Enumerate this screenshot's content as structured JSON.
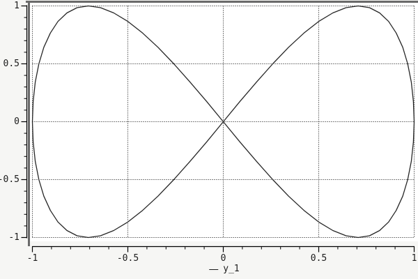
{
  "figure": {
    "background": "#f6f6f4",
    "plot_background": "#ffffff",
    "frame_color": "#6a6a6a",
    "axis_color": "#000000",
    "grid_color": "#000000",
    "curve_color": "#262626"
  },
  "axes": {
    "x": {
      "min": -1,
      "max": 1,
      "major_ticks": [
        -1,
        -0.5,
        0,
        0.5,
        1
      ],
      "tick_labels": [
        "-1",
        "-0.5",
        "0",
        "0.5",
        "1"
      ],
      "minor_step": 0.1
    },
    "y": {
      "min": -1,
      "max": 1,
      "major_ticks": [
        -1,
        -0.5,
        0,
        0.5,
        1
      ],
      "tick_labels": [
        "-1",
        "-0.5",
        "0",
        "0.5",
        "1"
      ],
      "minor_step": 0.1
    }
  },
  "legend": {
    "label": "y_1"
  },
  "chart_data": {
    "type": "line",
    "title": "",
    "xlabel": "",
    "ylabel": "",
    "xlim": [
      -1,
      1
    ],
    "ylim": [
      -1,
      1
    ],
    "grid": "dotted",
    "legend_position": "below-axis-center",
    "parametric": "x=sin(t), y=sin(2t), t in [0, 2*pi]",
    "series": [
      {
        "name": "y_1",
        "points": [
          [
            0.0,
            0.0
          ],
          [
            0.087,
            0.174
          ],
          [
            0.174,
            0.342
          ],
          [
            0.259,
            0.5
          ],
          [
            0.342,
            0.643
          ],
          [
            0.423,
            0.766
          ],
          [
            0.5,
            0.866
          ],
          [
            0.574,
            0.94
          ],
          [
            0.643,
            0.985
          ],
          [
            0.707,
            1.0
          ],
          [
            0.766,
            0.985
          ],
          [
            0.819,
            0.94
          ],
          [
            0.866,
            0.866
          ],
          [
            0.906,
            0.766
          ],
          [
            0.94,
            0.643
          ],
          [
            0.966,
            0.5
          ],
          [
            0.985,
            0.342
          ],
          [
            0.996,
            0.174
          ],
          [
            1.0,
            0.0
          ],
          [
            0.996,
            -0.174
          ],
          [
            0.985,
            -0.342
          ],
          [
            0.966,
            -0.5
          ],
          [
            0.94,
            -0.643
          ],
          [
            0.906,
            -0.766
          ],
          [
            0.866,
            -0.866
          ],
          [
            0.819,
            -0.94
          ],
          [
            0.766,
            -0.985
          ],
          [
            0.707,
            -1.0
          ],
          [
            0.643,
            -0.985
          ],
          [
            0.574,
            -0.94
          ],
          [
            0.5,
            -0.866
          ],
          [
            0.423,
            -0.766
          ],
          [
            0.342,
            -0.643
          ],
          [
            0.259,
            -0.5
          ],
          [
            0.174,
            -0.342
          ],
          [
            0.087,
            -0.174
          ],
          [
            0.0,
            0.0
          ],
          [
            -0.087,
            0.174
          ],
          [
            -0.174,
            0.342
          ],
          [
            -0.259,
            0.5
          ],
          [
            -0.342,
            0.643
          ],
          [
            -0.423,
            0.766
          ],
          [
            -0.5,
            0.866
          ],
          [
            -0.574,
            0.94
          ],
          [
            -0.643,
            0.985
          ],
          [
            -0.707,
            1.0
          ],
          [
            -0.766,
            0.985
          ],
          [
            -0.819,
            0.94
          ],
          [
            -0.866,
            0.866
          ],
          [
            -0.906,
            0.766
          ],
          [
            -0.94,
            0.643
          ],
          [
            -0.966,
            0.5
          ],
          [
            -0.985,
            0.342
          ],
          [
            -0.996,
            0.174
          ],
          [
            -1.0,
            0.0
          ],
          [
            -0.996,
            -0.174
          ],
          [
            -0.985,
            -0.342
          ],
          [
            -0.966,
            -0.5
          ],
          [
            -0.94,
            -0.643
          ],
          [
            -0.906,
            -0.766
          ],
          [
            -0.866,
            -0.866
          ],
          [
            -0.819,
            -0.94
          ],
          [
            -0.766,
            -0.985
          ],
          [
            -0.707,
            -1.0
          ],
          [
            -0.643,
            -0.985
          ],
          [
            -0.574,
            -0.94
          ],
          [
            -0.5,
            -0.866
          ],
          [
            -0.423,
            -0.766
          ],
          [
            -0.342,
            -0.643
          ],
          [
            -0.259,
            -0.5
          ],
          [
            -0.174,
            -0.342
          ],
          [
            -0.087,
            -0.174
          ],
          [
            0.0,
            0.0
          ]
        ]
      }
    ]
  }
}
